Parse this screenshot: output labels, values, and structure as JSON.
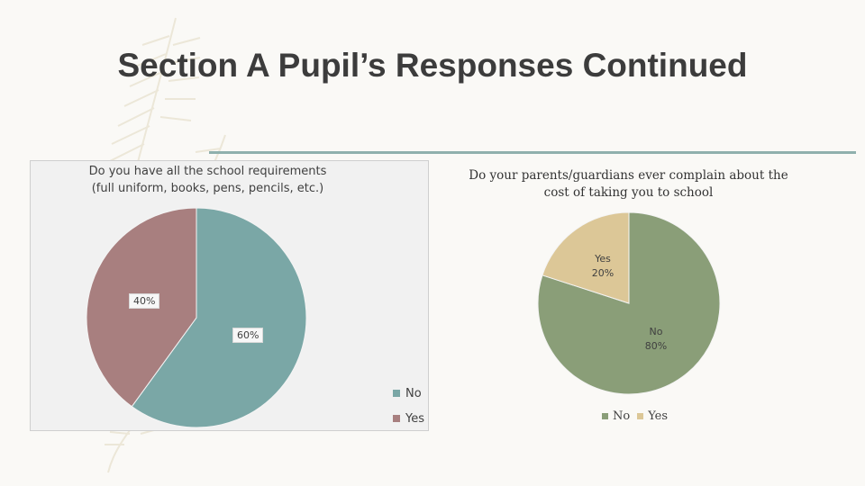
{
  "slide": {
    "title": "Section A Pupil’s Responses Continued"
  },
  "colors": {
    "accent": "#8fb0ad",
    "title": "#3c3c3c"
  },
  "chart_data": [
    {
      "type": "pie",
      "title": "Do you have all the school requirements (full uniform, books, pens, pencils, etc.)",
      "categories": [
        "No",
        "Yes"
      ],
      "values": [
        60,
        40
      ],
      "labels": [
        "60%",
        "40%"
      ],
      "colors": [
        "#7aa7a6",
        "#a87f7f"
      ],
      "legend": [
        "No",
        "Yes"
      ],
      "legend_position": "right"
    },
    {
      "type": "pie",
      "title": "Do your parents/guardians ever complain about the cost of taking you to school",
      "categories": [
        "No",
        "Yes"
      ],
      "values": [
        80,
        20
      ],
      "labels": [
        [
          "No",
          "80%"
        ],
        [
          "Yes",
          "20%"
        ]
      ],
      "colors": [
        "#8a9e78",
        "#dcc797"
      ],
      "legend": [
        "No",
        "Yes"
      ],
      "legend_position": "bottom"
    }
  ]
}
